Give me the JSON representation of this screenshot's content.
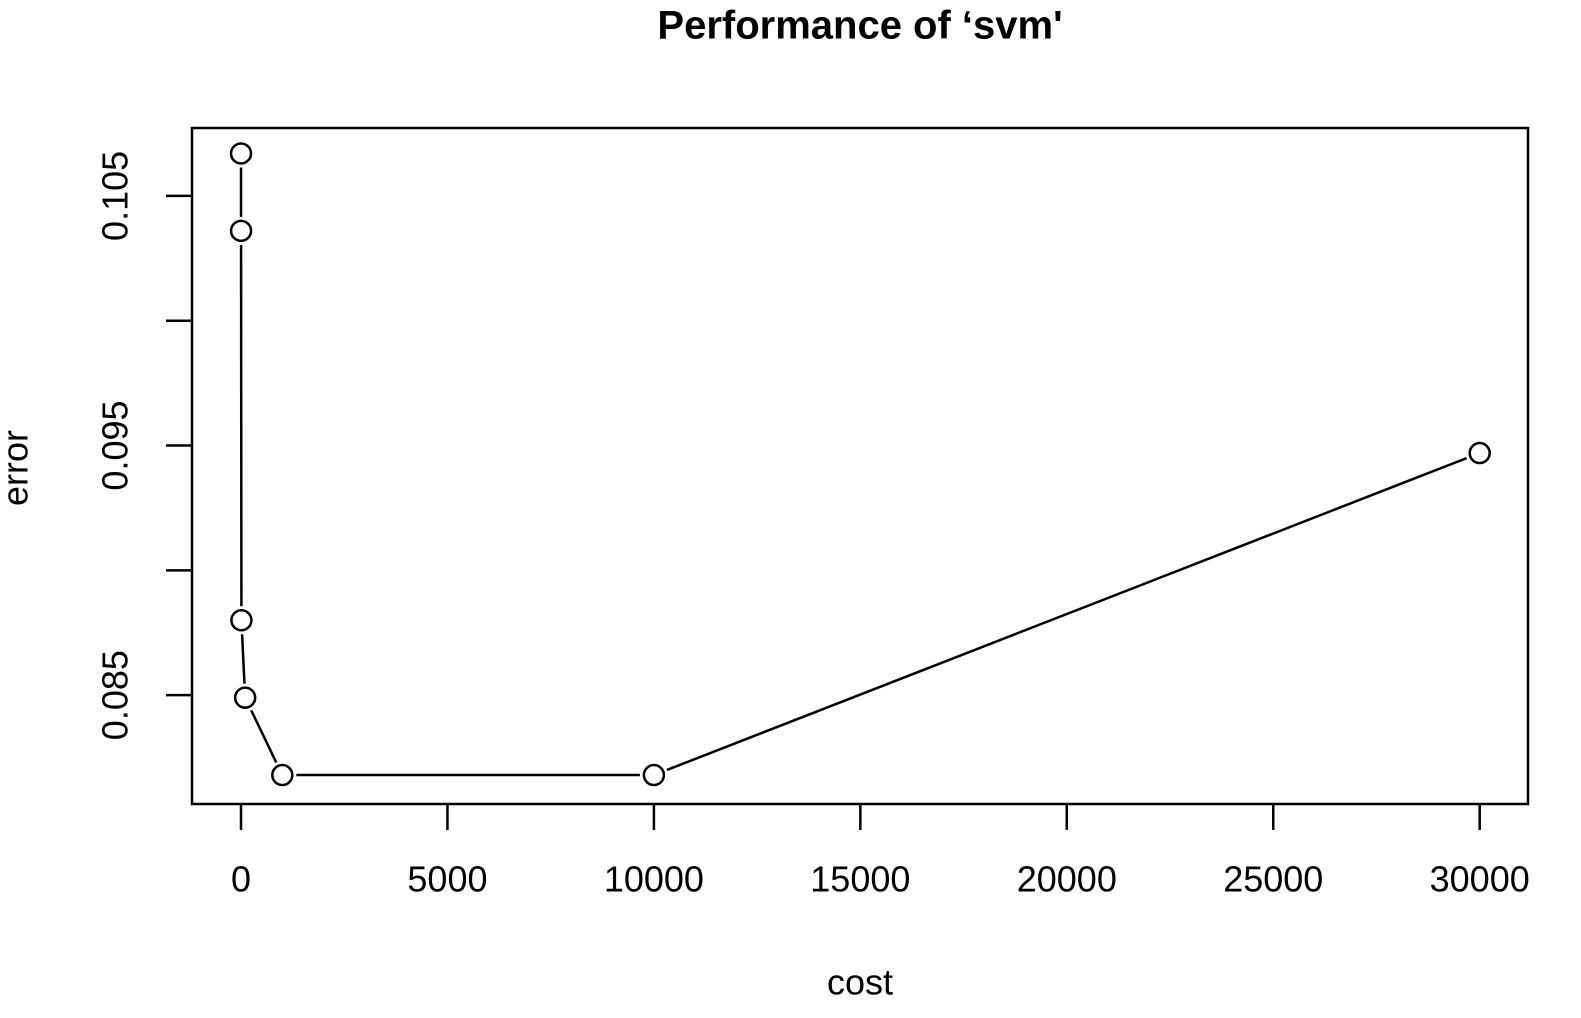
{
  "chart_data": {
    "type": "line",
    "title": "Performance of ‘svm'",
    "x_label": "cost",
    "y_label": "error",
    "x": [
      0.1,
      1,
      10,
      100,
      1000,
      10000,
      30000
    ],
    "values": [
      0.1067,
      0.1036,
      0.088,
      0.0849,
      0.0818,
      0.0818,
      0.0947
    ],
    "color": "#000000",
    "xlim": [
      -1187,
      31170
    ],
    "ylim": [
      0.08064,
      0.10772
    ],
    "xticks": [
      0,
      5000,
      10000,
      15000,
      20000,
      25000,
      30000
    ],
    "yticks": [
      0.085,
      0.095,
      0.105
    ],
    "yticks_unlabeled": [
      0.09,
      0.1
    ],
    "grid": false
  }
}
